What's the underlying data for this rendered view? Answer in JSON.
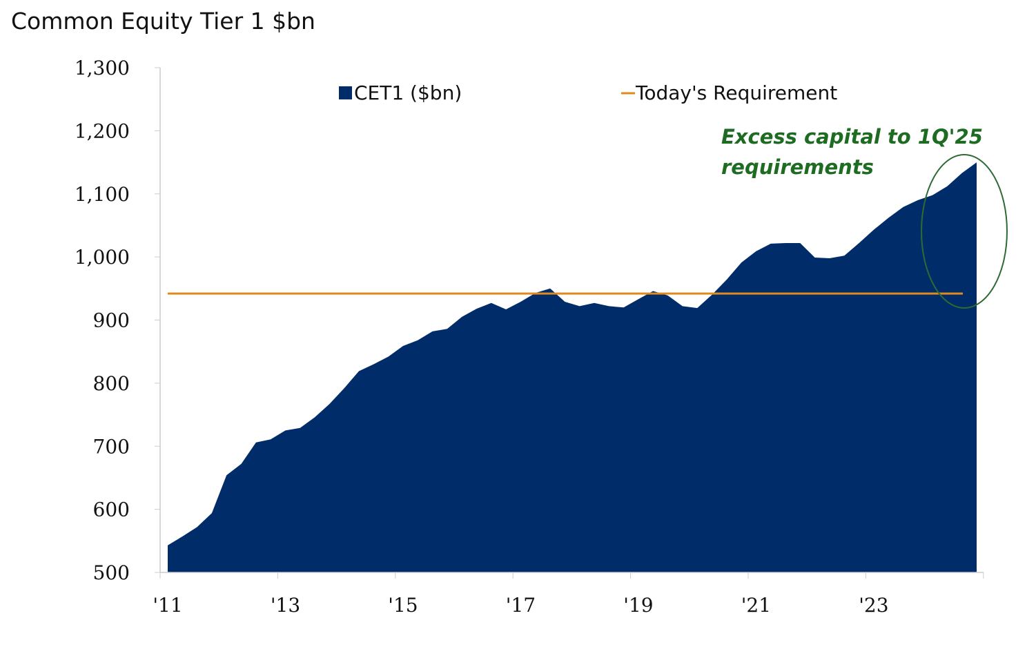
{
  "chart_data": {
    "type": "area",
    "title": "Common Equity Tier 1 $bn",
    "xlabel": "",
    "ylabel": "",
    "ylim": [
      500,
      1300
    ],
    "yticks": [
      "500",
      "600",
      "700",
      "800",
      "900",
      "1,000",
      "1,100",
      "1,200",
      "1,300"
    ],
    "ytick_values": [
      500,
      600,
      700,
      800,
      900,
      1000,
      1100,
      1200,
      1300
    ],
    "xticks": [
      "'11",
      "'13",
      "'15",
      "'17",
      "'19",
      "'21",
      "'23"
    ],
    "x_range": [
      "1Q11",
      "4Q24"
    ],
    "grid": false,
    "legend_placement": "top",
    "series": [
      {
        "name": "CET1 ($bn)",
        "type": "area",
        "color": "#002d6a",
        "values": [
          543,
          557,
          572,
          594,
          654,
          672,
          706,
          711,
          725,
          729,
          746,
          767,
          792,
          819,
          830,
          842,
          859,
          868,
          882,
          886,
          905,
          918,
          927,
          917,
          929,
          943,
          950,
          929,
          922,
          927,
          922,
          920,
          933,
          946,
          939,
          922,
          919,
          940,
          964,
          991,
          1009,
          1021,
          1022,
          1022,
          999,
          998,
          1002,
          1022,
          1043,
          1062,
          1079,
          1090,
          1098,
          1112,
          1133,
          1150
        ]
      },
      {
        "name": "Today's Requirement",
        "type": "line",
        "color": "#e08a1e",
        "value": 942
      }
    ],
    "annotations": [
      {
        "text_line1": "Excess capital to 1Q'25",
        "text_line2": "requirements",
        "color": "#1e6b22"
      }
    ]
  }
}
